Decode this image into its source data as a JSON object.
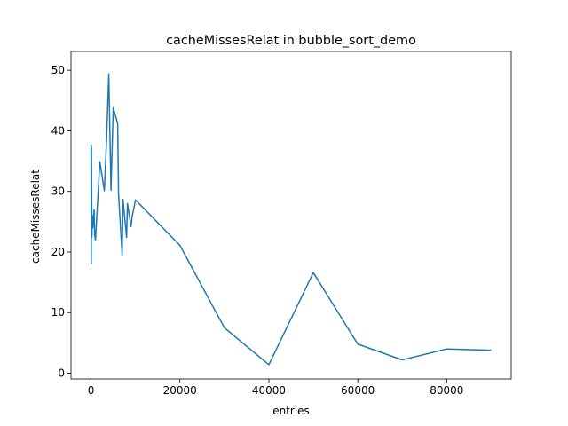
{
  "chart_data": {
    "type": "line",
    "title": "cacheMissesRelat in bubble_sort_demo",
    "x_label": "entries",
    "y_label": "cacheMissesRelat",
    "series": [
      {
        "name": "cacheMissesRelat",
        "color": "#1f77b4",
        "x": [
          10,
          50,
          100,
          200,
          300,
          400,
          500,
          700,
          800,
          1000,
          2000,
          3000,
          3500,
          4000,
          4500,
          5000,
          6000,
          6200,
          7000,
          7200,
          8000,
          8200,
          9000,
          9200,
          10000,
          20000,
          30000,
          40000,
          50000,
          60000,
          70000,
          80000,
          90000
        ],
        "values": [
          37.8,
          18.0,
          37.5,
          22.5,
          26.0,
          24.0,
          25.0,
          27.0,
          23.0,
          22.0,
          34.9,
          30.1,
          38.5,
          49.4,
          30.2,
          43.8,
          41.2,
          29.5,
          19.5,
          28.7,
          22.4,
          28.0,
          24.2,
          25.6,
          28.6,
          21.1,
          7.5,
          1.4,
          16.6,
          4.8,
          2.2,
          4.0,
          3.8
        ]
      }
    ],
    "xlim": [
      -4500,
      94500
    ],
    "ylim": [
      -0.95,
      53.1
    ],
    "xticks": [
      0,
      20000,
      40000,
      60000,
      80000
    ],
    "yticks": [
      0,
      10,
      20,
      30,
      40,
      50
    ]
  }
}
